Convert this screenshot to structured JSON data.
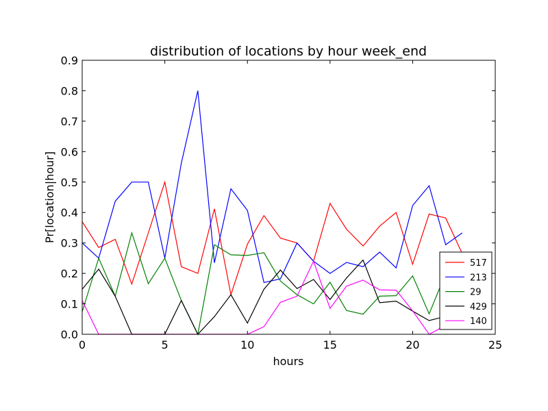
{
  "chart_data": {
    "type": "line",
    "title": "distribution of locations by hour week_end",
    "xlabel": "hours",
    "ylabel": "Pr[location|hour]",
    "xlim": [
      0,
      25
    ],
    "ylim": [
      0,
      0.9
    ],
    "xticks": [
      0,
      5,
      10,
      15,
      20,
      25
    ],
    "yticks": [
      0.0,
      0.1,
      0.2,
      0.3,
      0.4,
      0.5,
      0.6,
      0.7,
      0.8,
      0.9
    ],
    "grid": false,
    "legend_position": "lower-right",
    "x": [
      0,
      1,
      2,
      3,
      4,
      5,
      6,
      7,
      8,
      9,
      10,
      11,
      12,
      13,
      14,
      15,
      16,
      17,
      18,
      19,
      20,
      21,
      22,
      23
    ],
    "series": [
      {
        "name": "517",
        "color": "#ff0000",
        "values": [
          0.37,
          0.285,
          0.312,
          0.165,
          0.333,
          0.5,
          0.222,
          0.2,
          0.412,
          0.13,
          0.296,
          0.39,
          0.316,
          0.3,
          0.24,
          0.43,
          0.345,
          0.29,
          0.355,
          0.4,
          0.23,
          0.395,
          0.382,
          0.265
        ]
      },
      {
        "name": "213",
        "color": "#0000ff",
        "values": [
          0.3,
          0.25,
          0.437,
          0.5,
          0.5,
          0.25,
          0.562,
          0.8,
          0.235,
          0.478,
          0.407,
          0.17,
          0.182,
          0.3,
          0.24,
          0.2,
          0.236,
          0.222,
          0.27,
          0.218,
          0.423,
          0.488,
          0.294,
          0.333
        ]
      },
      {
        "name": "29",
        "color": "#008000",
        "values": [
          0.074,
          0.25,
          0.125,
          0.333,
          0.166,
          0.25,
          0.111,
          0.0,
          0.294,
          0.261,
          0.259,
          0.268,
          0.175,
          0.13,
          0.1,
          0.171,
          0.078,
          0.066,
          0.125,
          0.127,
          0.192,
          0.067,
          0.2,
          0.2
        ]
      },
      {
        "name": "429",
        "color": "#000000",
        "values": [
          0.148,
          0.214,
          0.125,
          0.0,
          0.0,
          0.0,
          0.111,
          0.0,
          0.058,
          0.13,
          0.037,
          0.148,
          0.211,
          0.15,
          0.18,
          0.114,
          0.185,
          0.244,
          0.104,
          0.109,
          0.076,
          0.045,
          0.059,
          0.06
        ]
      },
      {
        "name": "140",
        "color": "#ff00ff",
        "values": [
          0.111,
          0.0,
          0.0,
          0.0,
          0.0,
          0.0,
          0.0,
          0.0,
          0.0,
          0.0,
          0.0,
          0.025,
          0.105,
          0.125,
          0.24,
          0.085,
          0.158,
          0.178,
          0.146,
          0.145,
          0.077,
          0.0,
          0.029,
          0.04
        ]
      }
    ]
  }
}
